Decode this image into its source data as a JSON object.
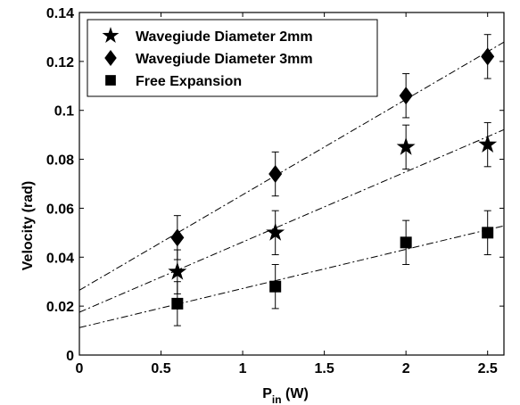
{
  "chart_data": {
    "type": "scatter",
    "xlabel_main": "P",
    "xlabel_sub": "in",
    "xlabel_unit": " (W)",
    "ylabel": "Velocity (rad)",
    "xlim": [
      0,
      2.6
    ],
    "ylim": [
      0,
      0.14
    ],
    "x_ticks": [
      0,
      0.5,
      1,
      1.5,
      2,
      2.5
    ],
    "x_tick_labels": [
      "0",
      "0.5",
      "1",
      "1.5",
      "2",
      "2.5"
    ],
    "y_ticks": [
      0,
      0.02,
      0.04,
      0.06,
      0.08,
      0.1,
      0.12,
      0.14
    ],
    "y_tick_labels": [
      "0",
      "0.02",
      "0.04",
      "0.06",
      "0.08",
      "0.1",
      "0.12",
      "0.14"
    ],
    "grid": false,
    "legend_position": "top-left",
    "series": [
      {
        "name": "Wavegiude Diameter 2mm",
        "marker": "star",
        "x": [
          0.6,
          1.2,
          2.0,
          2.5
        ],
        "y": [
          0.034,
          0.05,
          0.085,
          0.086
        ],
        "error": [
          0.009,
          0.009,
          0.009,
          0.009
        ],
        "fit": [
          0.0175,
          0.0287
        ]
      },
      {
        "name": "Wavegiude Diameter 3mm",
        "marker": "diamond",
        "x": [
          0.6,
          1.2,
          2.0,
          2.5
        ],
        "y": [
          0.048,
          0.074,
          0.106,
          0.122
        ],
        "error": [
          0.009,
          0.009,
          0.009,
          0.009
        ],
        "fit": [
          0.0265,
          0.039
        ]
      },
      {
        "name": "Free Expansion",
        "marker": "square",
        "x": [
          0.6,
          1.2,
          2.0,
          2.5
        ],
        "y": [
          0.021,
          0.028,
          0.046,
          0.05
        ],
        "error": [
          0.009,
          0.009,
          0.009,
          0.009
        ],
        "fit": [
          0.0112,
          0.016
        ]
      }
    ]
  }
}
